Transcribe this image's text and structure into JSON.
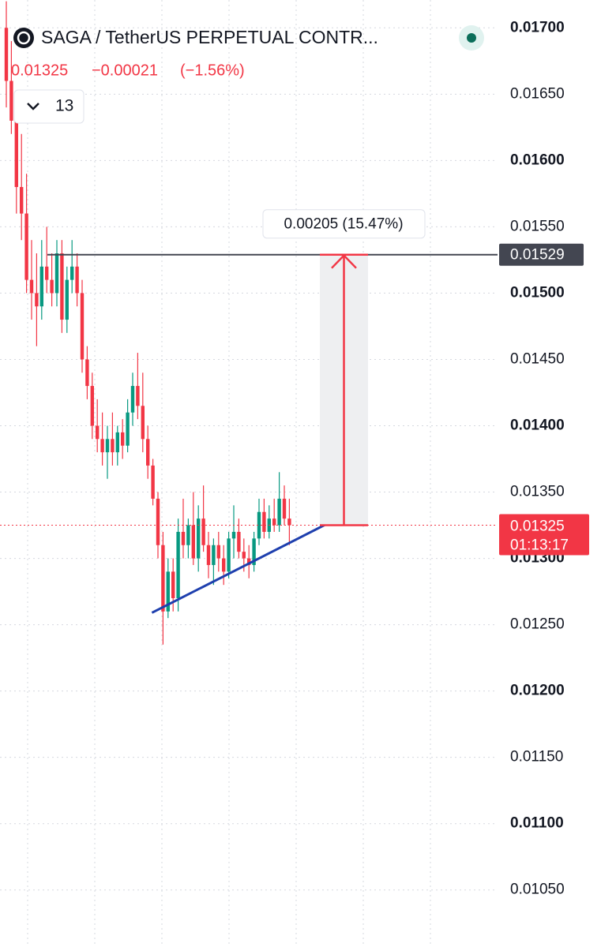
{
  "header": {
    "title": "SAGA / TetherUS PERPETUAL CONTR...",
    "price": "0.01325",
    "change": "−0.00021",
    "change_pct": "(−1.56%)",
    "interval": "13"
  },
  "chart_data": {
    "type": "candlestick",
    "open": [
      0.017,
      0.0166,
      0.0163,
      0.0158,
      0.0156,
      0.0151,
      0.015,
      0.0149,
      0.0152,
      0.0151,
      0.015,
      0.0153,
      0.0148,
      0.0151,
      0.0152,
      0.015,
      0.0145,
      0.0143,
      0.014,
      0.0139,
      0.0138,
      0.0139,
      0.0138,
      0.01395,
      0.01385,
      0.0141,
      0.0143,
      0.01415,
      0.0139,
      0.0137,
      0.01345,
      0.0131,
      0.0126,
      0.0129,
      0.0127,
      0.0132,
      0.0131,
      0.01325,
      0.013,
      0.0133,
      0.0131,
      0.01295,
      0.0131,
      0.013,
      0.0129,
      0.01315,
      0.0132,
      0.01305,
      0.013,
      0.01295,
      0.01315,
      0.01335,
      0.0132,
      0.0133,
      0.01325,
      0.01345,
      0.0133
    ],
    "high": [
      0.0172,
      0.0169,
      0.0165,
      0.0162,
      0.0159,
      0.0154,
      0.0153,
      0.0154,
      0.0155,
      0.0153,
      0.0154,
      0.0154,
      0.0152,
      0.0154,
      0.0153,
      0.0151,
      0.0146,
      0.0144,
      0.0142,
      0.0141,
      0.014,
      0.0141,
      0.014,
      0.01405,
      0.0142,
      0.0144,
      0.01455,
      0.0144,
      0.014,
      0.01375,
      0.0135,
      0.0132,
      0.013,
      0.013,
      0.0133,
      0.01345,
      0.0133,
      0.0135,
      0.0134,
      0.01355,
      0.0132,
      0.01315,
      0.0132,
      0.0131,
      0.0132,
      0.0134,
      0.0133,
      0.01315,
      0.0131,
      0.0132,
      0.01345,
      0.01345,
      0.0134,
      0.01345,
      0.01365,
      0.01355,
      0.01345
    ],
    "low": [
      0.0164,
      0.0162,
      0.0156,
      0.0154,
      0.015,
      0.0148,
      0.0146,
      0.0148,
      0.015,
      0.0149,
      0.0149,
      0.0147,
      0.0147,
      0.015,
      0.0149,
      0.0144,
      0.0142,
      0.0139,
      0.0138,
      0.0137,
      0.0136,
      0.0137,
      0.0137,
      0.01375,
      0.0138,
      0.014,
      0.01405,
      0.0138,
      0.0136,
      0.0134,
      0.013,
      0.01235,
      0.01255,
      0.0126,
      0.0126,
      0.013,
      0.013,
      0.01295,
      0.0129,
      0.01305,
      0.01285,
      0.0128,
      0.0129,
      0.0128,
      0.01285,
      0.013,
      0.013,
      0.0129,
      0.01285,
      0.0129,
      0.0131,
      0.01315,
      0.01315,
      0.0132,
      0.0132,
      0.01325,
      0.0131
    ],
    "close": [
      0.0166,
      0.0163,
      0.0158,
      0.0156,
      0.0151,
      0.015,
      0.0149,
      0.0152,
      0.0151,
      0.015,
      0.0153,
      0.0148,
      0.0151,
      0.0152,
      0.015,
      0.0145,
      0.0143,
      0.014,
      0.0139,
      0.0138,
      0.0139,
      0.0138,
      0.01395,
      0.01385,
      0.0141,
      0.0143,
      0.01415,
      0.0139,
      0.0137,
      0.01345,
      0.0131,
      0.0126,
      0.0129,
      0.0127,
      0.0132,
      0.0131,
      0.01325,
      0.013,
      0.0133,
      0.0131,
      0.01295,
      0.0131,
      0.013,
      0.0129,
      0.01315,
      0.0132,
      0.01305,
      0.013,
      0.01295,
      0.01315,
      0.01335,
      0.0132,
      0.0133,
      0.01325,
      0.01345,
      0.0133,
      0.01325
    ],
    "up_color": "#089981",
    "down_color": "#f23645",
    "ylim": [
      0.01007,
      0.01721
    ],
    "yticks": [
      {
        "value": 0.017,
        "label": "0.01700"
      },
      {
        "value": 0.0165,
        "label": "0.01650"
      },
      {
        "value": 0.016,
        "label": "0.01600"
      },
      {
        "value": 0.0155,
        "label": "0.01550"
      },
      {
        "value": 0.015,
        "label": "0.01500"
      },
      {
        "value": 0.0145,
        "label": "0.01450"
      },
      {
        "value": 0.014,
        "label": "0.01400"
      },
      {
        "value": 0.0135,
        "label": "0.01350"
      },
      {
        "value": 0.013,
        "label": "0.01300"
      },
      {
        "value": 0.0125,
        "label": "0.01250"
      },
      {
        "value": 0.012,
        "label": "0.01200"
      },
      {
        "value": 0.0115,
        "label": "0.01150"
      },
      {
        "value": 0.011,
        "label": "0.01100"
      },
      {
        "value": 0.0105,
        "label": "0.01050"
      }
    ],
    "grid": true,
    "level_line": {
      "value": 0.01529,
      "label": "0.01529"
    },
    "last_price": {
      "value": 0.01325,
      "label": "0.01325",
      "countdown": "01:13:17"
    },
    "measure": {
      "from": 0.01325,
      "to": 0.01529,
      "label": "0.00205 (15.47%)"
    },
    "trendline": {
      "values": [
        0.01259,
        0.0133
      ],
      "color": "#1e3fae"
    }
  }
}
